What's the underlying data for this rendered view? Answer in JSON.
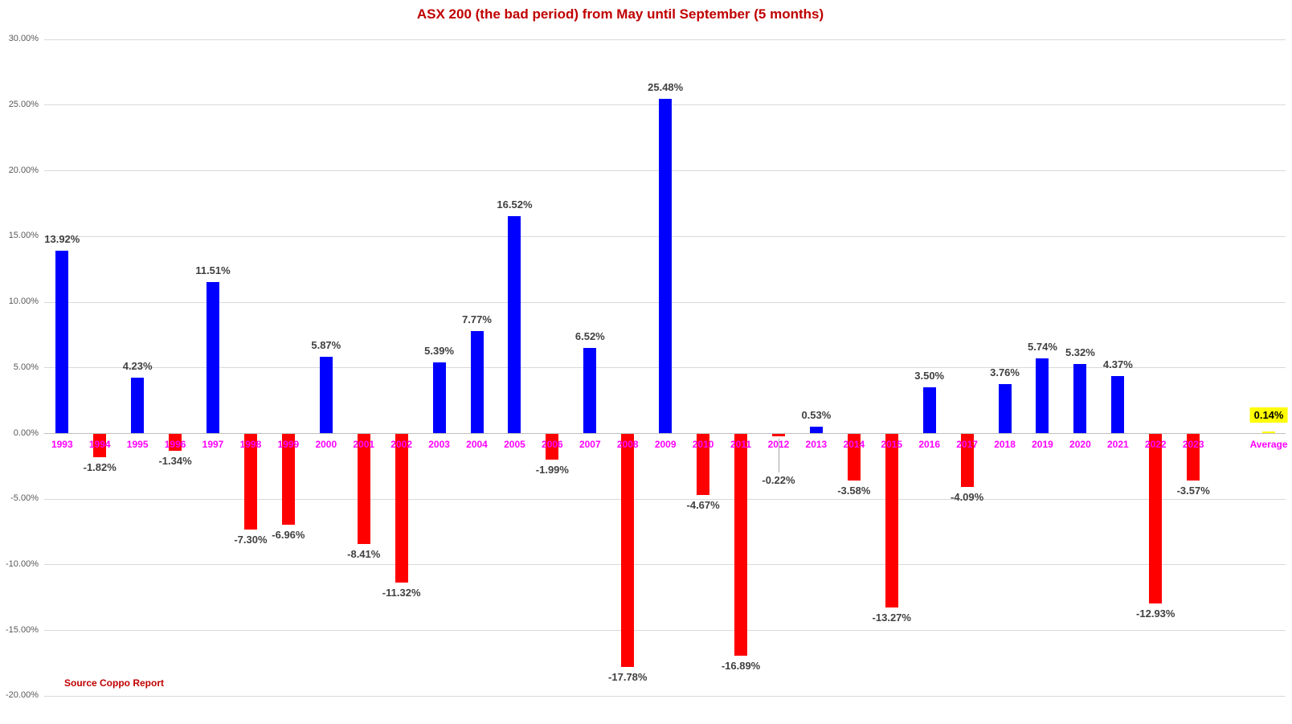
{
  "title": "ASX 200 (the bad period) from May until September (5 months)",
  "source": "Source Coppo Report",
  "chart_data": {
    "type": "bar",
    "title": "ASX 200 (the bad period) from May until September (5 months)",
    "xlabel": "",
    "ylabel": "",
    "categories": [
      "1993",
      "1994",
      "1995",
      "1996",
      "1997",
      "1998",
      "1999",
      "2000",
      "2001",
      "2002",
      "2003",
      "2004",
      "2005",
      "2006",
      "2007",
      "2008",
      "2009",
      "2010",
      "2011",
      "2012",
      "2013",
      "2014",
      "2015",
      "2016",
      "2017",
      "2018",
      "2019",
      "2020",
      "2021",
      "2022",
      "2023",
      "Average"
    ],
    "values": [
      13.92,
      -1.82,
      4.23,
      -1.34,
      11.51,
      -7.3,
      -6.96,
      5.87,
      -8.41,
      -11.32,
      5.39,
      7.77,
      16.52,
      -1.99,
      6.52,
      -17.78,
      25.48,
      -4.67,
      -16.89,
      -0.22,
      0.53,
      -3.58,
      -13.27,
      3.5,
      -4.09,
      3.76,
      5.74,
      5.32,
      4.37,
      -12.93,
      -3.57,
      0.14
    ],
    "labels": [
      "13.92%",
      "-1.82%",
      "4.23%",
      "-1.34%",
      "11.51%",
      "-7.30%",
      "-6.96%",
      "5.87%",
      "-8.41%",
      "-11.32%",
      "5.39%",
      "7.77%",
      "16.52%",
      "-1.99%",
      "6.52%",
      "-17.78%",
      "25.48%",
      "-4.67%",
      "-16.89%",
      "-0.22%",
      "0.53%",
      "-3.58%",
      "-13.27%",
      "3.50%",
      "-4.09%",
      "3.76%",
      "5.74%",
      "5.32%",
      "4.37%",
      "-12.93%",
      "-3.57%",
      "0.14%"
    ],
    "ylim": [
      -20,
      30
    ],
    "ytick_step": 5,
    "ytick_format": "0.00%",
    "grid": true,
    "legend": false,
    "annotations": {
      "average_separated": true,
      "leader_line_categories": [
        "2012"
      ],
      "highlighted_category": "Average"
    },
    "colors": {
      "positive_bar": "#0000fe",
      "negative_bar": "#fe0000",
      "average_bar": "#ffff00",
      "average_label_bg": "#ffff00",
      "title_text": "#c00000",
      "source_text": "#c00000",
      "category_label": "#ff00ff",
      "value_label": "#404040",
      "axis_tick_label": "#595959",
      "gridline": "#d9d9d9",
      "zero_line": "#bfbfbf",
      "leader_line": "#a6a6a6"
    }
  }
}
